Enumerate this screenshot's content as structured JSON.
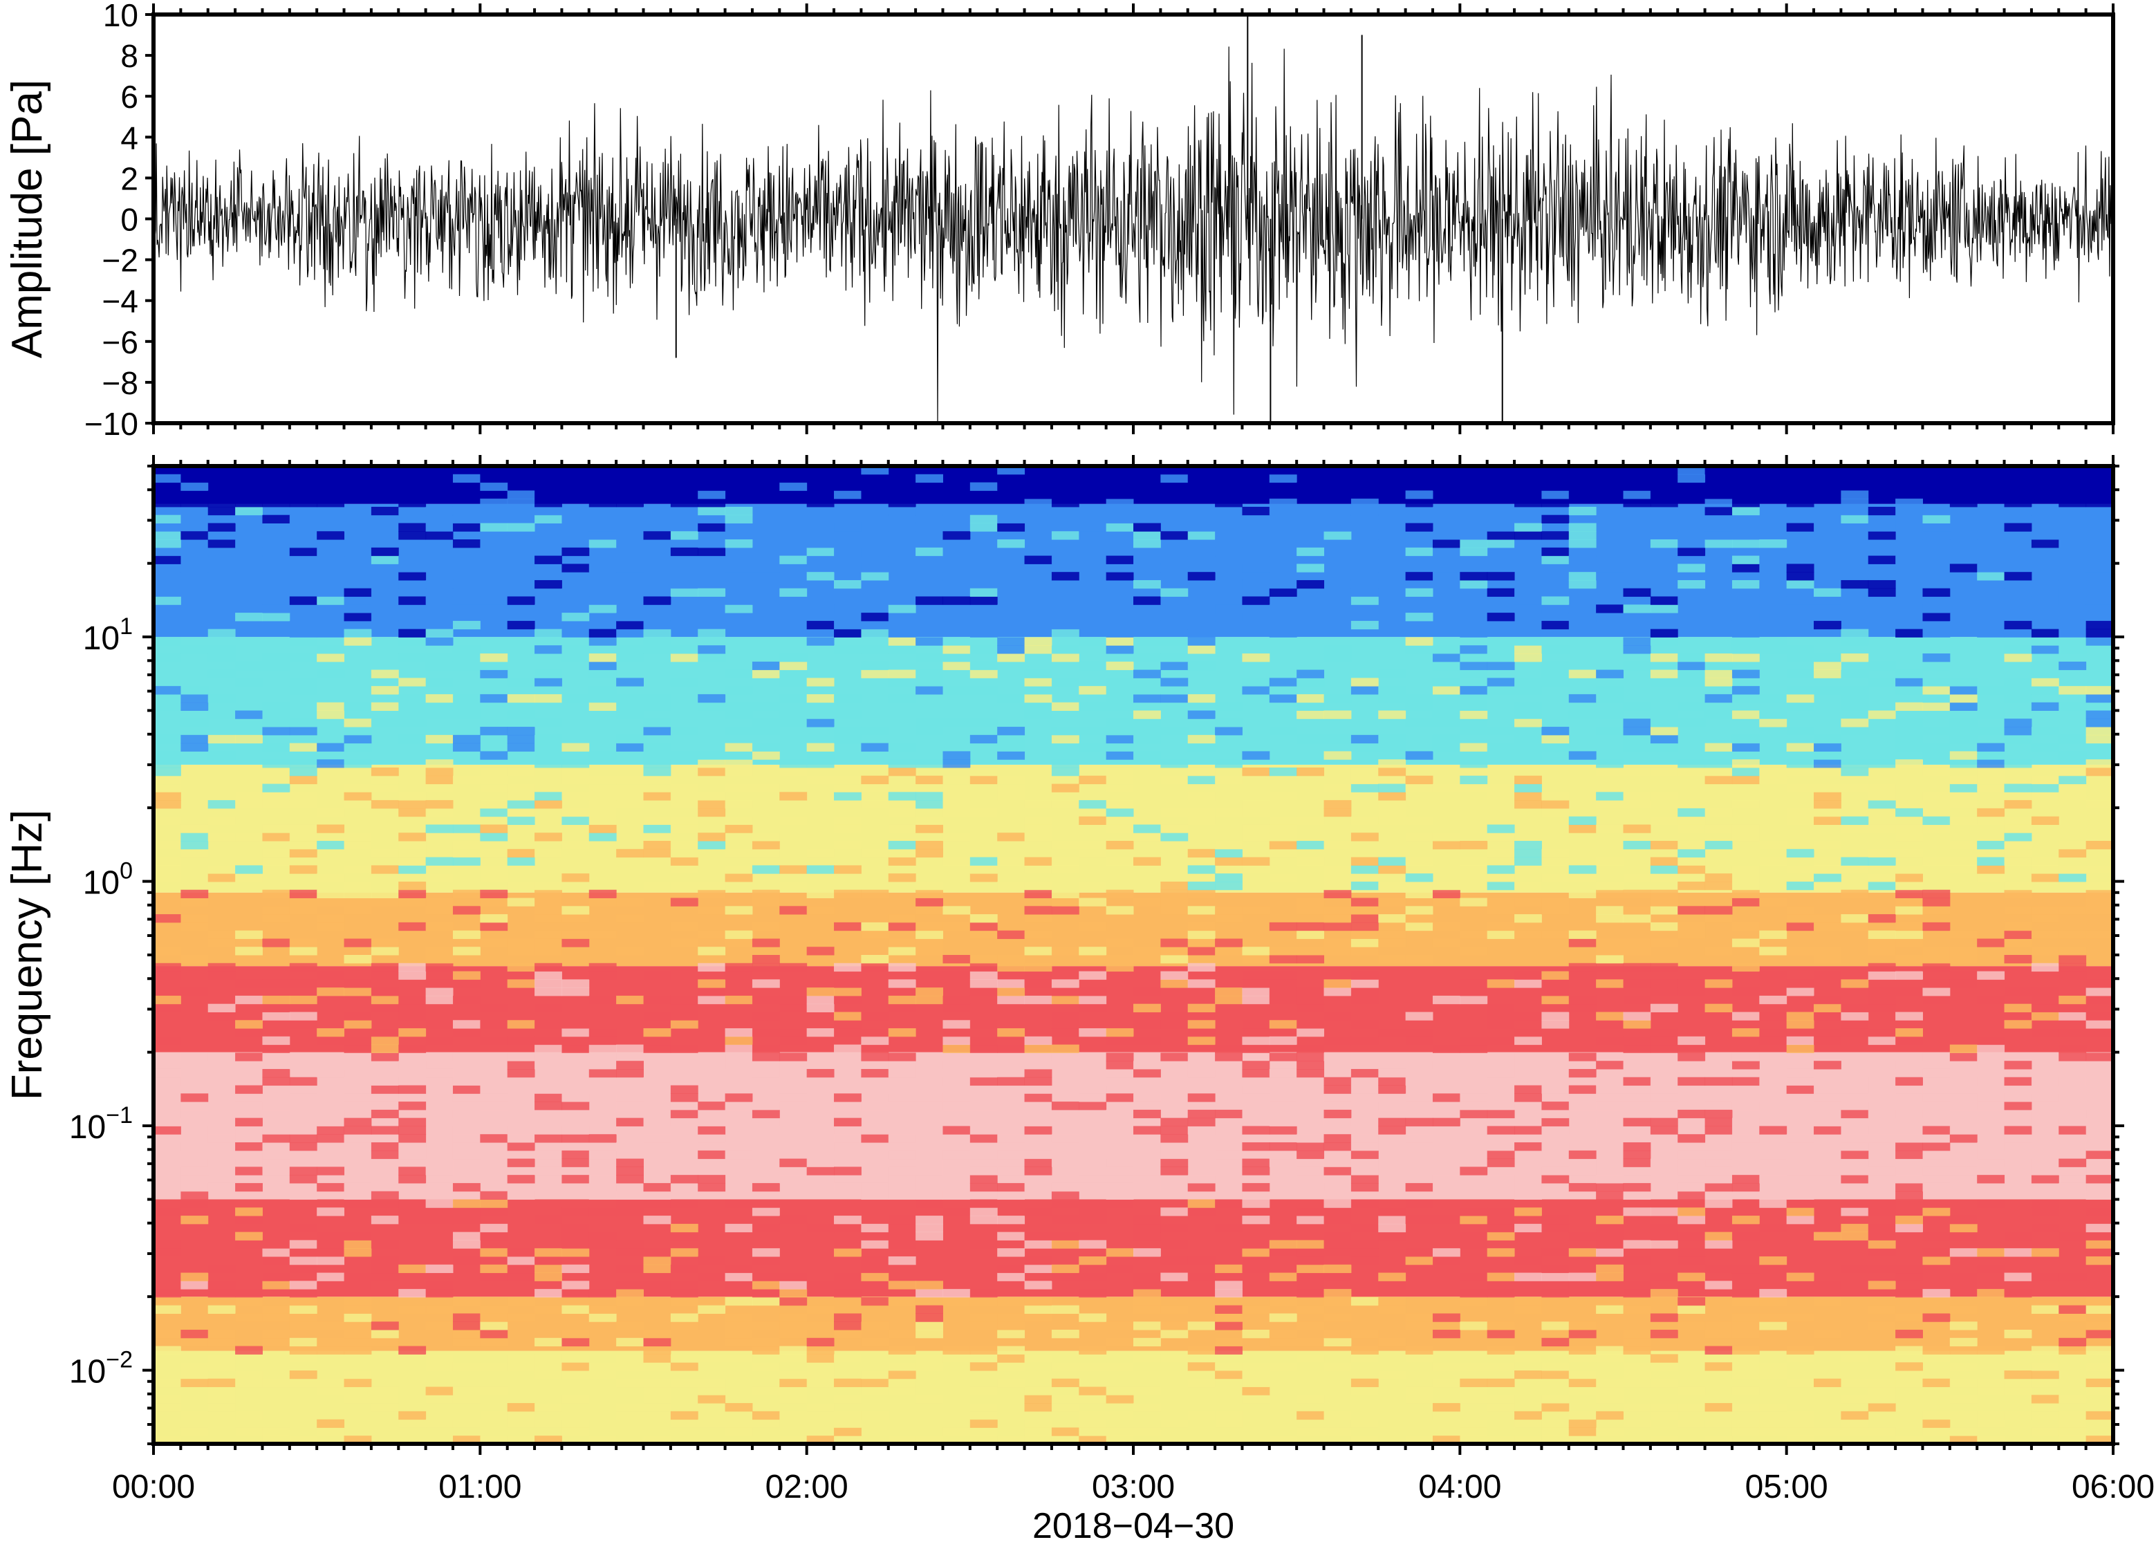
{
  "chart_data": [
    {
      "type": "line",
      "title": "",
      "ylabel": "Amplitude [Pa]",
      "xlabel": "",
      "ylim": [
        -10,
        10
      ],
      "yticks": [
        -10,
        -8,
        -6,
        -4,
        -2,
        0,
        2,
        4,
        6,
        8,
        10
      ],
      "ytick_labels": [
        "−10",
        "−8",
        "−6",
        "−4",
        "−2",
        "0",
        "2",
        "4",
        "6",
        "8",
        "10"
      ],
      "x_range": [
        "00:00",
        "06:00"
      ],
      "envelope_hours": [
        0.0,
        0.5,
        1.0,
        1.5,
        2.0,
        2.5,
        3.0,
        3.25,
        3.5,
        4.0,
        4.5,
        5.0,
        5.5,
        6.0
      ],
      "envelope_pa": [
        2.5,
        3.0,
        3.5,
        3.8,
        3.5,
        4.5,
        5.0,
        6.0,
        5.5,
        5.0,
        4.5,
        4.0,
        3.0,
        2.8
      ],
      "peaks": [
        {
          "hour": 3.35,
          "value": 10
        },
        {
          "hour": 3.42,
          "value": -10
        },
        {
          "hour": 4.13,
          "value": -10
        },
        {
          "hour": 3.7,
          "value": 9
        },
        {
          "hour": 1.6,
          "value": -6.8
        }
      ],
      "grid": false
    },
    {
      "type": "heatmap",
      "title": "",
      "ylabel": "Frequency [Hz]",
      "xlabel": "2018−04−30",
      "y_scale": "log",
      "ylim": [
        0.005,
        50
      ],
      "yticks": [
        0.01,
        0.1,
        1,
        10
      ],
      "ytick_labels": [
        {
          "base": "10",
          "exp": "−2"
        },
        {
          "base": "10",
          "exp": "−1"
        },
        {
          "base": "10",
          "exp": "0"
        },
        {
          "base": "10",
          "exp": "1"
        }
      ],
      "xticks": [
        "00:00",
        "01:00",
        "02:00",
        "03:00",
        "04:00",
        "05:00",
        "06:00"
      ],
      "colorscale": [
        "#f4ef8a",
        "#fbb85f",
        "#f0545a",
        "#f9c3c3",
        "#d8ef86",
        "#6fe4e4",
        "#3c8ef2",
        "#0000aa"
      ],
      "dominant_bands_hz": [
        {
          "from": 0.005,
          "to": 0.012,
          "color": "#f4ef8a"
        },
        {
          "from": 0.012,
          "to": 0.02,
          "color": "#fbb85f"
        },
        {
          "from": 0.02,
          "to": 0.05,
          "color": "#f0545a"
        },
        {
          "from": 0.05,
          "to": 0.2,
          "color": "#f9c3c3"
        },
        {
          "from": 0.2,
          "to": 0.45,
          "color": "#f0545a"
        },
        {
          "from": 0.45,
          "to": 0.9,
          "color": "#fbb85f"
        },
        {
          "from": 0.9,
          "to": 3,
          "color": "#f4ef8a"
        },
        {
          "from": 3,
          "to": 10,
          "color": "#6fe4e4"
        },
        {
          "from": 10,
          "to": 35,
          "color": "#3c8ef2"
        },
        {
          "from": 35,
          "to": 50,
          "color": "#0000aa"
        }
      ],
      "grid": false
    }
  ]
}
